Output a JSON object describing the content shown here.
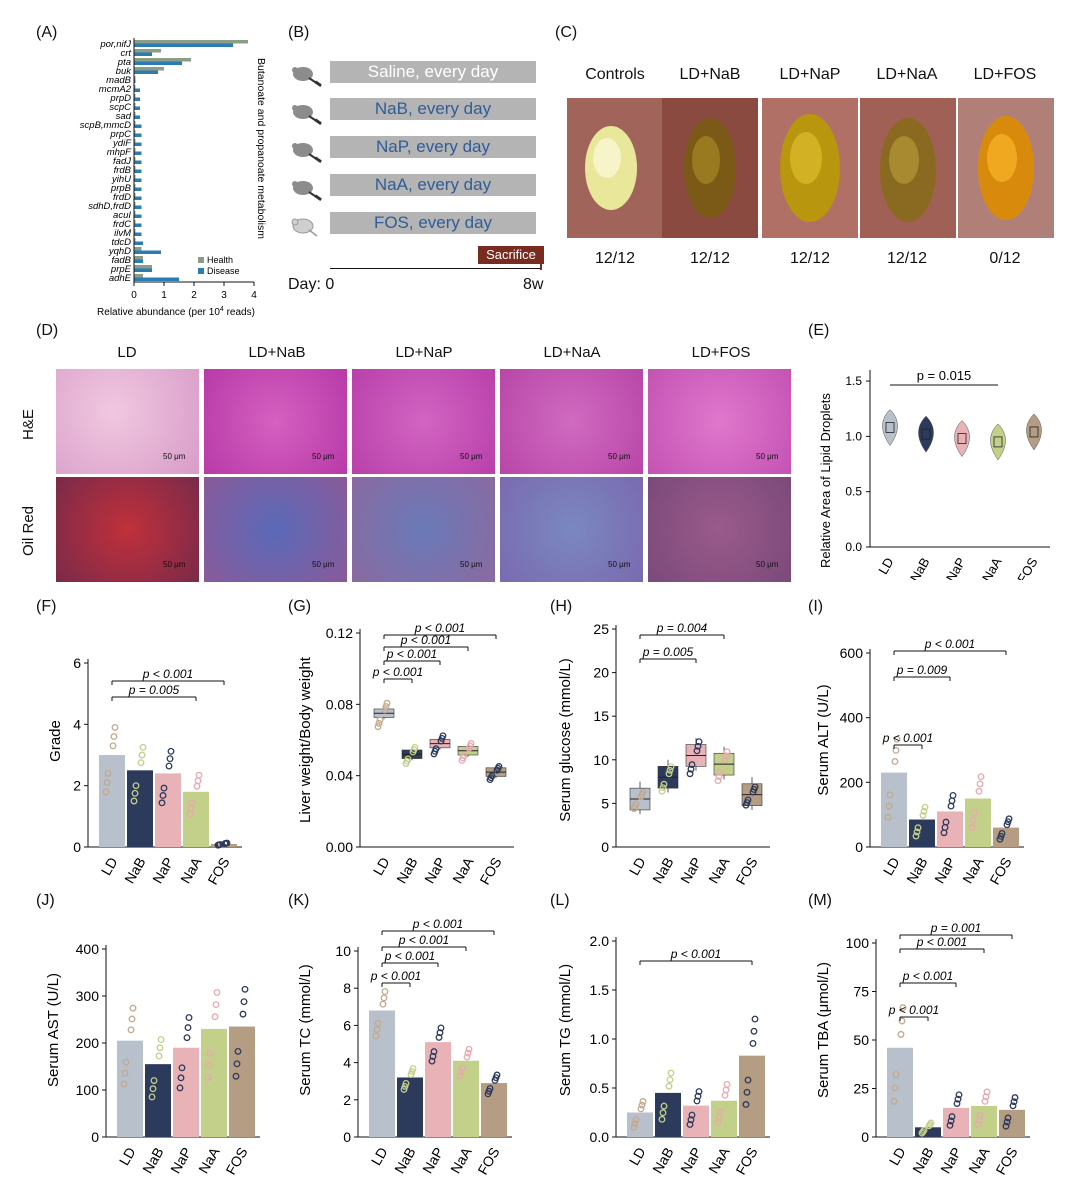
{
  "panels": {
    "A": {
      "label": "(A)",
      "genes": [
        "por,nifJ",
        "crt",
        "pta",
        "buk",
        "madB",
        "mcmA2",
        "prpD",
        "scpC",
        "sad",
        "scpB,mmcD",
        "prpC",
        "ydiF",
        "mhpF",
        "fadJ",
        "frdB",
        "yihU",
        "prpB",
        "frdD",
        "sdhD,frdD",
        "acuI",
        "frdC",
        "ilvM",
        "tdcD",
        "yqhD",
        "fadB",
        "prpE",
        "adhE"
      ],
      "health": [
        3.8,
        0.9,
        1.9,
        1.0,
        0.05,
        0.05,
        0.05,
        0.05,
        0.05,
        0.05,
        0.05,
        0.05,
        0.05,
        0.05,
        0.05,
        0.05,
        0.05,
        0.05,
        0.05,
        0.05,
        0.05,
        0.05,
        0.05,
        0.25,
        0.3,
        0.6,
        0.3
      ],
      "disease": [
        3.3,
        0.6,
        1.6,
        0.8,
        0.05,
        0.2,
        0.2,
        0.2,
        0.2,
        0.25,
        0.25,
        0.25,
        0.25,
        0.25,
        0.25,
        0.25,
        0.25,
        0.25,
        0.25,
        0.25,
        0.25,
        0.25,
        0.3,
        0.9,
        0.3,
        0.6,
        1.5
      ],
      "xticks": [
        "0",
        "1",
        "2",
        "3",
        "4"
      ],
      "xlabel_pre": "Relative abundance (per 10",
      "xlabel_sup": "4",
      "xlabel_post": " reads)",
      "side_label": "Butanoate and propanoate metabolism",
      "legend": [
        "Health",
        "Disease"
      ],
      "colors": {
        "health": "#8a9d88",
        "disease": "#2c7bb1"
      }
    },
    "B": {
      "label": "(B)",
      "groups": [
        "Saline, every day",
        "NaB, every day",
        "NaP, every day",
        "NaA, every day",
        "FOS, every day"
      ],
      "sacrifice": "Sacrifice",
      "day_label": "Day: 0",
      "end_label": "8w"
    },
    "C": {
      "label": "(C)",
      "titles": [
        "Controls",
        "LD+NaB",
        "LD+NaP",
        "LD+NaA",
        "LD+FOS"
      ],
      "ratios": [
        "12/12",
        "12/12",
        "12/12",
        "12/12",
        "0/12"
      ]
    },
    "D": {
      "label": "(D)",
      "columns": [
        "LD",
        "LD+NaB",
        "LD+NaP",
        "LD+NaA",
        "LD+FOS"
      ],
      "rows": [
        "H&E",
        "Oil Red"
      ],
      "scale": "50 μm"
    },
    "E": {
      "label": "(E)",
      "ylabel": "Relative Area of Lipid Droplets",
      "p": "p = 0.015",
      "yticks": [
        "0.0",
        "0.5",
        "1.0",
        "1.5"
      ],
      "groups": [
        "LD",
        "NaB",
        "NaP",
        "NaA",
        "FOS"
      ],
      "medians": [
        1.08,
        1.02,
        0.98,
        0.95,
        1.04
      ]
    },
    "F": {
      "label": "(F)",
      "ylabel": "Grade",
      "yticks": [
        "0",
        "2",
        "4",
        "6"
      ],
      "groups": [
        "LD",
        "NaB",
        "NaP",
        "NaA",
        "FOS"
      ],
      "means": [
        3.0,
        2.5,
        2.4,
        1.8,
        0.1
      ],
      "pvals": [
        "p < 0.001",
        "p = 0.005"
      ]
    },
    "G": {
      "label": "(G)",
      "ylabel": "Liver weight/Body weight",
      "yticks": [
        "0.00",
        "0.04",
        "0.08",
        "0.12"
      ],
      "groups": [
        "LD",
        "NaB",
        "NaP",
        "NaA",
        "FOS"
      ],
      "medians": [
        0.075,
        0.052,
        0.058,
        0.054,
        0.042
      ],
      "pvals": [
        "p < 0.001",
        "p < 0.001",
        "p < 0.001",
        "p < 0.001"
      ]
    },
    "H": {
      "label": "(H)",
      "ylabel": "Serum glucose (mmol/L)",
      "yticks": [
        "0",
        "5",
        "10",
        "15",
        "20",
        "25"
      ],
      "groups": [
        "LD",
        "NaB",
        "NaP",
        "NaA",
        "FOS"
      ],
      "medians": [
        5.5,
        8.0,
        10.5,
        9.5,
        6.0
      ],
      "pvals": [
        "p = 0.004",
        "p = 0.005"
      ]
    },
    "I": {
      "label": "(I)",
      "ylabel": "Serum ALT (U/L)",
      "yticks": [
        "0",
        "200",
        "400",
        "600"
      ],
      "groups": [
        "LD",
        "NaB",
        "NaP",
        "NaA",
        "FOS"
      ],
      "means": [
        230,
        85,
        110,
        150,
        60
      ],
      "pvals": [
        "p < 0.001",
        "p = 0.009",
        "p < 0.001"
      ]
    },
    "J": {
      "label": "(J)",
      "ylabel": "Serum AST (U/L)",
      "yticks": [
        "0",
        "100",
        "200",
        "300",
        "400"
      ],
      "groups": [
        "LD",
        "NaB",
        "NaP",
        "NaA",
        "FOS"
      ],
      "means": [
        205,
        155,
        190,
        230,
        235
      ]
    },
    "K": {
      "label": "(K)",
      "ylabel": "Serum TC (mmol/L)",
      "yticks": [
        "0",
        "2",
        "4",
        "6",
        "8",
        "10"
      ],
      "groups": [
        "LD",
        "NaB",
        "NaP",
        "NaA",
        "FOS"
      ],
      "means": [
        6.8,
        3.2,
        5.1,
        4.1,
        2.9
      ],
      "pvals": [
        "p < 0.001",
        "p < 0.001",
        "p < 0.001",
        "p < 0.001"
      ]
    },
    "L": {
      "label": "(L)",
      "ylabel": "Serum TG (mmol/L)",
      "yticks": [
        "0.0",
        "0.5",
        "1.0",
        "1.5",
        "2.0"
      ],
      "groups": [
        "LD",
        "NaB",
        "NaP",
        "NaA",
        "FOS"
      ],
      "means": [
        0.25,
        0.45,
        0.32,
        0.37,
        0.83
      ],
      "pvals": [
        "p < 0.001"
      ]
    },
    "M": {
      "label": "(M)",
      "ylabel": "Serum TBA (μmol/L)",
      "yticks": [
        "0",
        "25",
        "50",
        "75",
        "100"
      ],
      "groups": [
        "LD",
        "NaB",
        "NaP",
        "NaA",
        "FOS"
      ],
      "means": [
        46,
        5,
        15,
        16,
        14
      ],
      "pvals": [
        "p = 0.001",
        "p < 0.001",
        "p < 0.001",
        "p < 0.001"
      ]
    }
  },
  "group_colors": [
    "#b8c0cc",
    "#2c3a5c",
    "#e9b2b6",
    "#c2d08a",
    "#b59d83"
  ],
  "group_marker_colors": [
    "#c2a98e",
    "#c2d08a",
    "#2c3a5c",
    "#e9a8b0",
    "#2c3a5c"
  ]
}
